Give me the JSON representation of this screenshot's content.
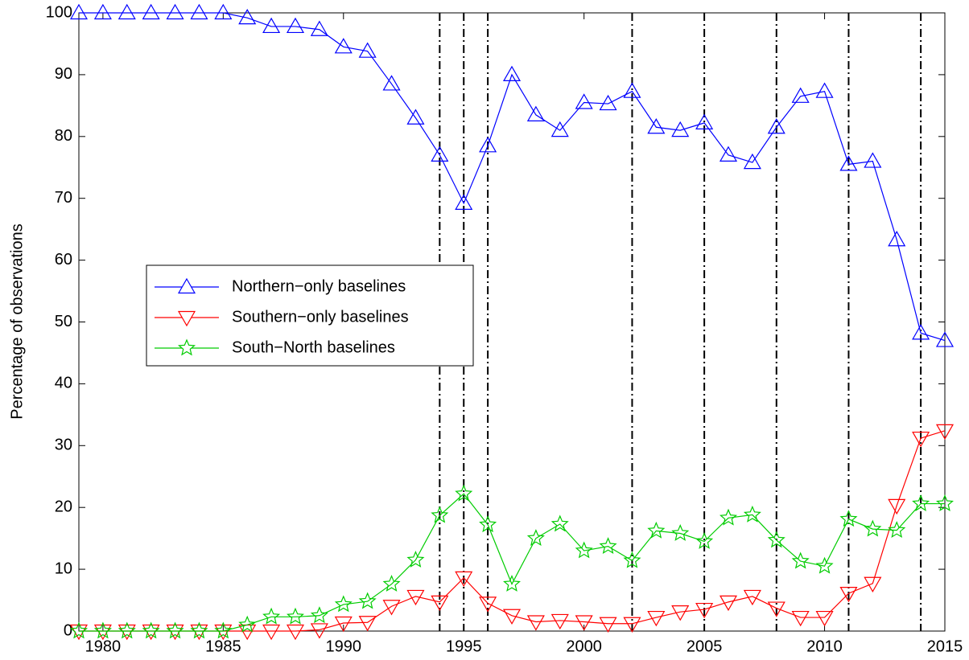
{
  "chart_data": {
    "type": "line",
    "ylabel": "Percentage of observations",
    "x": [
      1979,
      1980,
      1981,
      1982,
      1983,
      1984,
      1985,
      1986,
      1987,
      1988,
      1989,
      1990,
      1991,
      1992,
      1993,
      1994,
      1995,
      1996,
      1997,
      1998,
      1999,
      2000,
      2001,
      2002,
      2003,
      2004,
      2005,
      2006,
      2007,
      2008,
      2009,
      2010,
      2011,
      2012,
      2013,
      2014,
      2015
    ],
    "series": [
      {
        "name": "Northern−only baselines",
        "color": "#0000ff",
        "marker": "triangle-up",
        "values": [
          100,
          100,
          100,
          100,
          100,
          100,
          100,
          99.2,
          97.8,
          97.8,
          97.3,
          94.5,
          93.8,
          88.5,
          83,
          77,
          69.2,
          78.5,
          90,
          83.5,
          81,
          85.5,
          85.3,
          87.3,
          81.5,
          81,
          82.2,
          77,
          75.8,
          81.5,
          86.5,
          87.3,
          75.5,
          76,
          63.3,
          48.2,
          47
        ]
      },
      {
        "name": "Southern−only baselines",
        "color": "#ff0000",
        "marker": "triangle-down",
        "values": [
          0,
          0,
          0,
          0,
          0,
          0,
          0,
          0,
          0,
          0,
          0.2,
          1.3,
          1.4,
          4,
          5.6,
          4.7,
          8.6,
          4.5,
          2.5,
          1.5,
          1.7,
          1.5,
          1.2,
          1.2,
          2.2,
          3.1,
          3.5,
          4.7,
          5.6,
          3.7,
          2.2,
          2.2,
          6.1,
          7.7,
          20.3,
          31.2,
          32.4
        ]
      },
      {
        "name": "South−North baselines",
        "color": "#00cc00",
        "marker": "star",
        "values": [
          0,
          0,
          0,
          0,
          0,
          0,
          0,
          1,
          2.3,
          2.3,
          2.5,
          4.3,
          4.8,
          7.6,
          11.5,
          18.7,
          22.2,
          17.2,
          7.6,
          15,
          17.3,
          13,
          13.7,
          11.4,
          16.2,
          15.8,
          14.5,
          18.3,
          18.8,
          14.7,
          11.3,
          10.5,
          18.1,
          16.5,
          16.3,
          20.6,
          20.6
        ]
      }
    ],
    "vlines": [
      1994,
      1995,
      1996,
      2002,
      2005,
      2008,
      2011,
      2014
    ],
    "xlim": [
      1979,
      2015
    ],
    "xticks": [
      1980,
      1985,
      1990,
      1995,
      2000,
      2005,
      2010,
      2015
    ],
    "ylim": [
      0,
      100
    ],
    "yticks": [
      0,
      10,
      20,
      30,
      40,
      50,
      60,
      70,
      80,
      90,
      100
    ]
  }
}
